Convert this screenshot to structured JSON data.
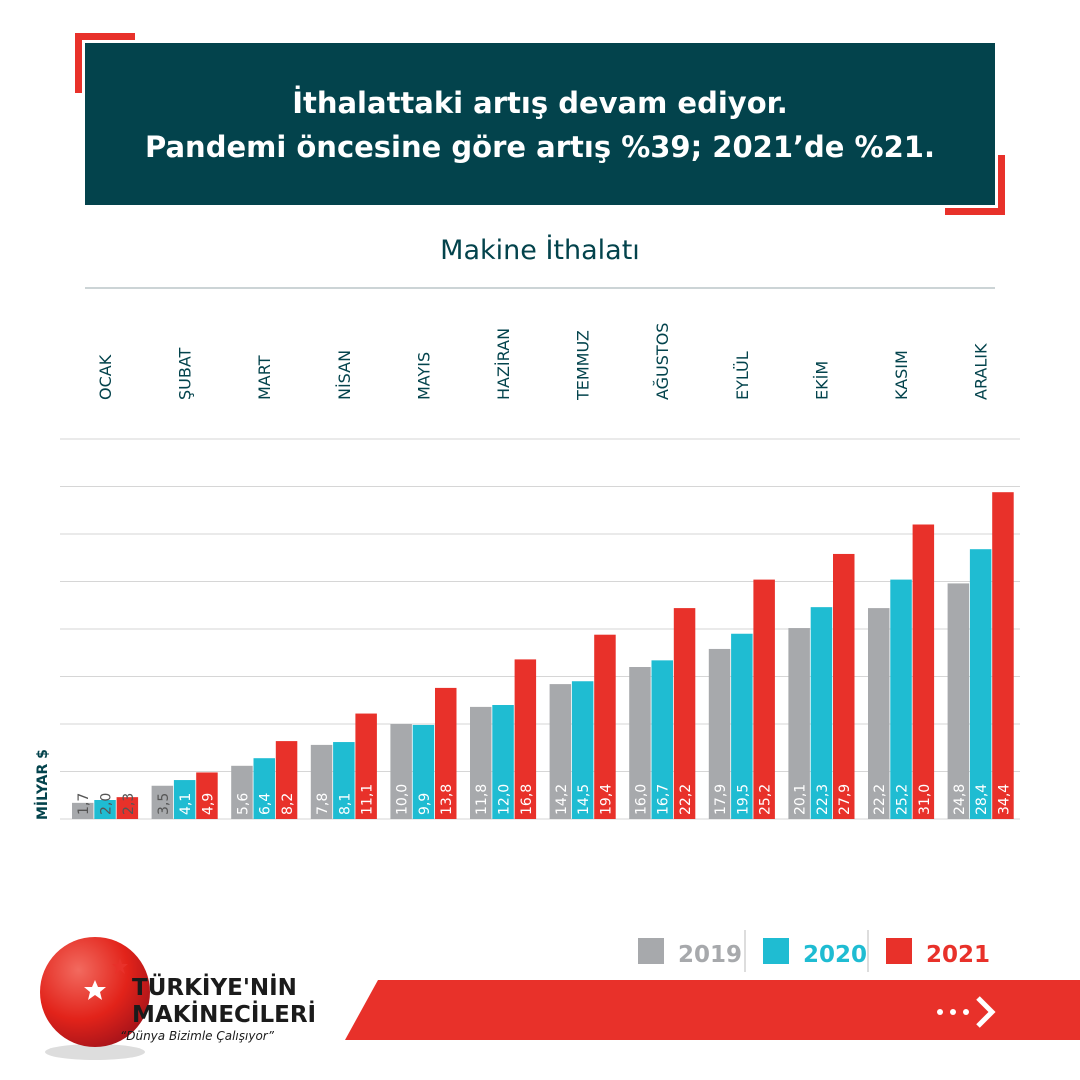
{
  "header": {
    "lines": [
      "İthalattaki artış devam ediyor.",
      "Pandemi öncesine göre artış %39; 2021’de %21."
    ]
  },
  "chart_data": {
    "type": "bar",
    "title": "Makine İthalatı",
    "y_label": "MİLYAR $",
    "categories": [
      "OCAK",
      "ŞUBAT",
      "MART",
      "NİSAN",
      "MAYIS",
      "HAZİRAN",
      "TEMMUZ",
      "AĞUSTOS",
      "EYLÜL",
      "EKİM",
      "KASIM",
      "ARALIK"
    ],
    "series": [
      {
        "name": "2019",
        "color": "#a7a9ac",
        "values": [
          1.7,
          3.5,
          5.6,
          7.8,
          10.0,
          11.8,
          14.2,
          16.0,
          17.9,
          20.1,
          22.2,
          24.8
        ],
        "value_labels": [
          "1,7",
          "3,5",
          "5,6",
          "7,8",
          "10,0",
          "11,8",
          "14,2",
          "16,0",
          "17,9",
          "20,1",
          "22,2",
          "24,8"
        ]
      },
      {
        "name": "2020",
        "color": "#1fbcd2",
        "values": [
          2.0,
          4.1,
          6.4,
          8.1,
          9.9,
          12.0,
          14.5,
          16.7,
          19.5,
          22.3,
          25.2,
          28.4
        ],
        "value_labels": [
          "2,0",
          "4,1",
          "6,4",
          "8,1",
          "9,9",
          "12,0",
          "14,5",
          "16,7",
          "19,5",
          "22,3",
          "25,2",
          "28,4"
        ]
      },
      {
        "name": "2021",
        "color": "#e8312a",
        "values": [
          2.3,
          4.9,
          8.2,
          11.1,
          13.8,
          16.8,
          19.4,
          22.2,
          25.2,
          27.9,
          31.0,
          34.4
        ],
        "value_labels": [
          "2,3",
          "4,9",
          "8,2",
          "11,1",
          "13,8",
          "16,8",
          "19,4",
          "22,2",
          "25,2",
          "27,9",
          "31,0",
          "34,4"
        ]
      }
    ],
    "ylim": [
      0,
      40
    ],
    "yticks": [
      0,
      5,
      10,
      15,
      20,
      25,
      30,
      35,
      40
    ],
    "grid": true
  },
  "brand": {
    "line1": "TÜRKİYE'NİN",
    "line2": "MAKİNECİLERİ",
    "slogan": "“Dünya Bizimle Çalışıyor”"
  }
}
